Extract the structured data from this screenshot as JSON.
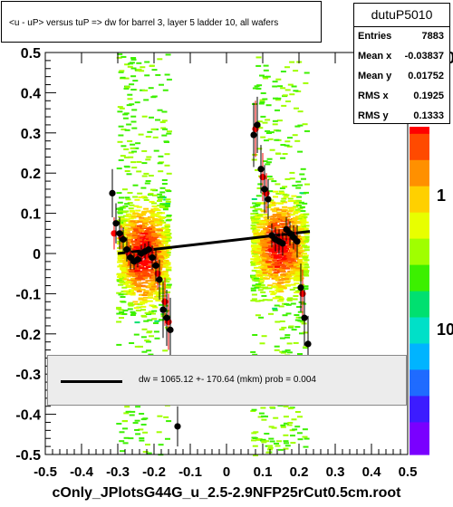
{
  "title": "<u - uP>       versus  tuP =>  dw for barrel 3, layer 5 ladder 10, all wafers",
  "stats": {
    "name": "dutuP5010",
    "rows": [
      {
        "label": "Entries",
        "value": "7883"
      },
      {
        "label": "Mean x",
        "value": "-0.03837"
      },
      {
        "label": "Mean y",
        "value": "0.01752"
      },
      {
        "label": "RMS x",
        "value": "0.1925"
      },
      {
        "label": "RMS y",
        "value": "0.1333"
      }
    ]
  },
  "fit_legend": "dw = 1065.12 +- 170.64 (mkm) prob = 0.004",
  "footer": "cOnly_JPlotsG44G_u_2.5-2.9NFP25rCut0.5cm.root",
  "colors": {
    "fit_line": "#000000",
    "profile_black": "#000000",
    "profile_red": "#ff0000",
    "palette": [
      "#7a00ff",
      "#3c1cff",
      "#1f6bff",
      "#00b4ff",
      "#00e0c8",
      "#00e070",
      "#3cf000",
      "#a0ff00",
      "#e8ff00",
      "#ffd000",
      "#ff9000",
      "#ff4a00",
      "#ff0000"
    ]
  },
  "chart_data": {
    "type": "scatter",
    "xlim": [
      -0.5,
      0.5
    ],
    "ylim": [
      -0.5,
      0.5
    ],
    "x_ticks": [
      "-0.5",
      "-0.4",
      "-0.3",
      "-0.2",
      "-0.1",
      "0",
      "0.1",
      "0.2",
      "0.3",
      "0.4",
      "0.5"
    ],
    "y_ticks": [
      "-0.5",
      "-0.4",
      "-0.3",
      "-0.2",
      "-0.1",
      "0",
      "0.1",
      "0.2",
      "0.3",
      "0.4",
      "0.5"
    ],
    "z_scale_labels": [
      "10",
      "1",
      "10"
    ],
    "z_log": true,
    "clusters": [
      {
        "x_center": -0.235,
        "x_halfwidth": 0.07,
        "y_center": 0.0,
        "y_spread": 0.12,
        "y_min": -0.5,
        "y_max": 0.5
      },
      {
        "x_center": 0.14,
        "x_halfwidth": 0.075,
        "y_center": 0.02,
        "y_spread": 0.11,
        "y_min": -0.5,
        "y_max": 0.5
      }
    ],
    "fit_line": {
      "x": [
        -0.3,
        0.23
      ],
      "y": [
        0.0,
        0.055
      ]
    },
    "profile_black": [
      {
        "x": -0.315,
        "y": 0.15,
        "err": 0.06
      },
      {
        "x": -0.305,
        "y": 0.075,
        "err": 0.05
      },
      {
        "x": -0.295,
        "y": 0.05,
        "err": 0.04
      },
      {
        "x": -0.285,
        "y": 0.035,
        "err": 0.03
      },
      {
        "x": -0.275,
        "y": 0.01,
        "err": 0.03
      },
      {
        "x": -0.265,
        "y": -0.01,
        "err": 0.03
      },
      {
        "x": -0.255,
        "y": -0.02,
        "err": 0.02
      },
      {
        "x": -0.245,
        "y": -0.015,
        "err": 0.02
      },
      {
        "x": -0.235,
        "y": 0.0,
        "err": 0.02
      },
      {
        "x": -0.225,
        "y": 0.005,
        "err": 0.02
      },
      {
        "x": -0.215,
        "y": 0.01,
        "err": 0.02
      },
      {
        "x": -0.205,
        "y": -0.01,
        "err": 0.03
      },
      {
        "x": -0.195,
        "y": -0.03,
        "err": 0.04
      },
      {
        "x": -0.185,
        "y": -0.065,
        "err": 0.05
      },
      {
        "x": -0.175,
        "y": -0.14,
        "err": 0.07
      },
      {
        "x": -0.165,
        "y": -0.16,
        "err": 0.07
      },
      {
        "x": -0.155,
        "y": -0.19,
        "err": 0.08
      },
      {
        "x": -0.135,
        "y": -0.43,
        "err": 0.05
      },
      {
        "x": 0.075,
        "y": 0.295,
        "err": 0.08
      },
      {
        "x": 0.085,
        "y": 0.32,
        "err": 0.07
      },
      {
        "x": 0.095,
        "y": 0.21,
        "err": 0.06
      },
      {
        "x": 0.105,
        "y": 0.16,
        "err": 0.06
      },
      {
        "x": 0.115,
        "y": 0.135,
        "err": 0.05
      },
      {
        "x": 0.125,
        "y": 0.045,
        "err": 0.03
      },
      {
        "x": 0.135,
        "y": 0.035,
        "err": 0.03
      },
      {
        "x": 0.145,
        "y": 0.03,
        "err": 0.03
      },
      {
        "x": 0.155,
        "y": 0.025,
        "err": 0.03
      },
      {
        "x": 0.165,
        "y": 0.06,
        "err": 0.03
      },
      {
        "x": 0.175,
        "y": 0.05,
        "err": 0.03
      },
      {
        "x": 0.185,
        "y": 0.04,
        "err": 0.03
      },
      {
        "x": 0.195,
        "y": 0.03,
        "err": 0.04
      },
      {
        "x": 0.205,
        "y": -0.085,
        "err": 0.06
      },
      {
        "x": 0.215,
        "y": -0.16,
        "err": 0.07
      },
      {
        "x": 0.225,
        "y": -0.225,
        "err": 0.07
      }
    ],
    "profile_red": [
      {
        "x": -0.31,
        "y": 0.05,
        "err": 0.04
      },
      {
        "x": -0.29,
        "y": 0.04,
        "err": 0.03
      },
      {
        "x": -0.27,
        "y": 0.0,
        "err": 0.03
      },
      {
        "x": -0.25,
        "y": -0.02,
        "err": 0.02
      },
      {
        "x": -0.23,
        "y": 0.005,
        "err": 0.02
      },
      {
        "x": -0.21,
        "y": 0.01,
        "err": 0.02
      },
      {
        "x": -0.19,
        "y": -0.05,
        "err": 0.04
      },
      {
        "x": -0.17,
        "y": -0.12,
        "err": 0.06
      },
      {
        "x": -0.16,
        "y": -0.17,
        "err": 0.07
      },
      {
        "x": 0.08,
        "y": 0.31,
        "err": 0.07
      },
      {
        "x": 0.1,
        "y": 0.19,
        "err": 0.06
      },
      {
        "x": 0.11,
        "y": 0.15,
        "err": 0.05
      },
      {
        "x": 0.13,
        "y": 0.04,
        "err": 0.03
      },
      {
        "x": 0.15,
        "y": 0.02,
        "err": 0.03
      },
      {
        "x": 0.17,
        "y": 0.055,
        "err": 0.03
      },
      {
        "x": 0.19,
        "y": 0.035,
        "err": 0.03
      },
      {
        "x": 0.21,
        "y": -0.1,
        "err": 0.06
      }
    ]
  }
}
